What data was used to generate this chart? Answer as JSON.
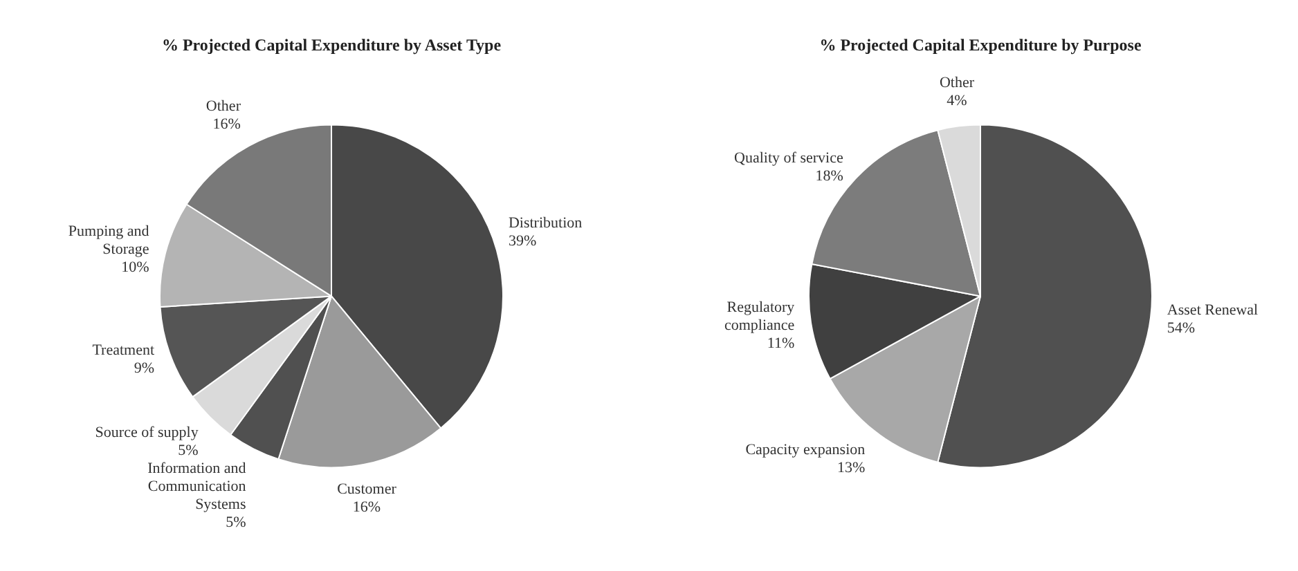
{
  "chart_data": [
    {
      "type": "pie",
      "title": "% Projected Capital Expenditure by Asset Type",
      "categories": [
        "Distribution",
        "Customer",
        "Information and Communication Systems",
        "Source of supply",
        "Treatment",
        "Pumping and Storage",
        "Other"
      ],
      "values": [
        39,
        16,
        5,
        5,
        9,
        10,
        16
      ],
      "value_labels": [
        "39%",
        "16%",
        "5%",
        "5%",
        "9%",
        "10%",
        "16%"
      ],
      "colors": [
        "#484848",
        "#9a9a9a",
        "#505050",
        "#dadada",
        "#555555",
        "#b4b4b4",
        "#797979"
      ],
      "legend": false
    },
    {
      "type": "pie",
      "title": "% Projected Capital Expenditure by Purpose",
      "categories": [
        "Asset Renewal",
        "Capacity expansion",
        "Regulatory compliance",
        "Quality of service",
        "Other"
      ],
      "values": [
        54,
        13,
        11,
        18,
        4
      ],
      "value_labels": [
        "54%",
        "13%",
        "11%",
        "18%",
        "4%"
      ],
      "colors": [
        "#505050",
        "#a8a8a8",
        "#404040",
        "#7c7c7c",
        "#dadada"
      ],
      "legend": false
    }
  ]
}
